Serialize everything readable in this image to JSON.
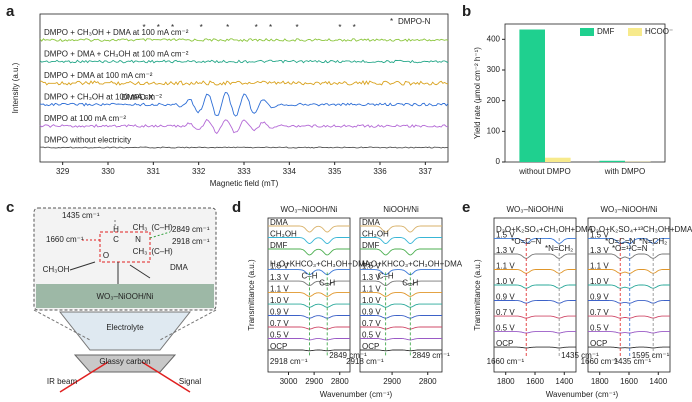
{
  "panel_labels": [
    "a",
    "b",
    "c",
    "d",
    "e"
  ],
  "chart_data": [
    {
      "type": "line",
      "xlabel": "Magnetic field (mT)",
      "ylabel": "Intensity (a.u.)",
      "xlim": [
        328.5,
        337.5
      ],
      "xticks": [
        329,
        330,
        331,
        332,
        333,
        334,
        335,
        336,
        337
      ],
      "marker": "*",
      "legend_label": "DMPO-N",
      "legend_color": "#d48a00",
      "annotation": "DMPO-X",
      "series": [
        {
          "name": "DMPO + CH₃OH + DMA at 100 mA cm⁻²",
          "color": "#8cc63e"
        },
        {
          "name": "DMPO + DMA + CH₃OH at 100 mA cm⁻²",
          "color": "#27a88a"
        },
        {
          "name": "DMPO + DMA at 100 mA cm⁻²",
          "color": "#d9a21e"
        },
        {
          "name": "DMPO + CH₃OH at 100 mA cm⁻²",
          "color": "#2f6fd6"
        },
        {
          "name": "DMPO at 100 mA cm⁻²",
          "color": "#b46ad6"
        },
        {
          "name": "DMPO without electricity",
          "color": "#555555"
        }
      ]
    },
    {
      "type": "bar",
      "ylabel": "Yield rate (μmol cm⁻² h⁻¹)",
      "ylim": [
        0,
        450
      ],
      "yticks": [
        0,
        100,
        200,
        300,
        400
      ],
      "categories": [
        "without DMPO",
        "with DMPO"
      ],
      "series": [
        {
          "name": "DMF",
          "color": "#1fd08f",
          "values": [
            432,
            4
          ]
        },
        {
          "name": "HCOO⁻",
          "color": "#f7ea8c",
          "values": [
            14,
            1
          ]
        }
      ]
    }
  ],
  "diagram_c": {
    "wavenumbers": [
      "1435 cm⁻¹",
      "1660 cm⁻¹",
      "2849 cm⁻¹",
      "2918 cm⁻¹"
    ],
    "atoms": [
      "O",
      "C",
      "N",
      "H",
      "CH₃",
      "CH₃",
      "(C–H)",
      "(C–H)"
    ],
    "reactants": [
      "CH₃OH",
      "DMA"
    ],
    "catalyst": "WO₃–NiOOH/Ni",
    "electrolyte": "Electrolyte",
    "electrode": "Glassy carbon",
    "ir_beam": "IR beam",
    "signal": "Signal"
  },
  "spectra_common": {
    "xlabel": "Wavenumber (cm⁻¹)",
    "ylabel": "Transmittance (a.u.)",
    "potentials": [
      "1.5 V",
      "1.3 V",
      "1.1 V",
      "1.0 V",
      "0.9 V",
      "0.7 V",
      "0.5 V",
      "OCP"
    ],
    "potential_colors": [
      "#3b78d8",
      "#777777",
      "#e0962a",
      "#2aa89a",
      "#3d62c8",
      "#d04b6a",
      "#9a5ac6",
      "#333333"
    ]
  },
  "spectra_panels": [
    {
      "title": "WO₃–NiOOH/Ni",
      "xlim": [
        3080,
        2760
      ],
      "xticks": [
        3000,
        2900,
        2800
      ],
      "legend": "H₂O+KHCO₃+CH₃OH+DMA",
      "references": [
        {
          "name": "DMA",
          "color": "#d9b26a"
        },
        {
          "name": "CH₃OH",
          "color": "#38b6d6"
        },
        {
          "name": "DMF",
          "color": "#4caf50"
        }
      ],
      "peaks": [
        {
          "value": 2918,
          "label": "2918 cm⁻¹",
          "color": "#2e9e3a",
          "note": "C–H"
        },
        {
          "value": 2849,
          "label": "2849 cm⁻¹",
          "color": "#2e9e3a",
          "note": "C–H"
        }
      ]
    },
    {
      "title": "NiOOH/Ni",
      "xlim": [
        2990,
        2760
      ],
      "xticks": [
        2900,
        2800
      ],
      "legend": "H₂O+KHCO₃+CH₃OH+DMA",
      "references": [
        {
          "name": "DMA",
          "color": "#d9b26a"
        },
        {
          "name": "CH₃OH",
          "color": "#38b6d6"
        },
        {
          "name": "DMF",
          "color": "#4caf50"
        }
      ],
      "peaks": [
        {
          "value": 2918,
          "label": "2918 cm⁻¹",
          "color": "#2e9e3a",
          "note": "C–H"
        },
        {
          "value": 2849,
          "label": "2849 cm⁻¹",
          "color": "#2e9e3a",
          "note": "C–H"
        }
      ]
    },
    {
      "title": "WO₃–NiOOH/Ni",
      "xlim": [
        1880,
        1320
      ],
      "xticks": [
        1800,
        1600,
        1400
      ],
      "legend": "D₂O+K₂SO₄+CH₃OH+DMA",
      "references": [],
      "peaks": [
        {
          "value": 1660,
          "label": "1660 cm⁻¹",
          "color": "#e02020",
          "note": "*O=C–N"
        },
        {
          "value": 1435,
          "label": "1435 cm⁻¹",
          "color": "#888888",
          "note": "*N=CH₂"
        }
      ]
    },
    {
      "title": "WO₃–NiOOH/Ni",
      "xlim": [
        1880,
        1320
      ],
      "xticks": [
        1800,
        1600,
        1400
      ],
      "legend": "D₂O+K₂SO₄+¹³CH₃OH+DMA",
      "references": [],
      "peaks": [
        {
          "value": 1660,
          "label": "1660 cm⁻¹",
          "color": "#e02020",
          "note": "*O=C=N"
        },
        {
          "value": 1595,
          "label": "1595 cm⁻¹",
          "color": "#2f6fd6",
          "note": "*O=¹³C=N"
        },
        {
          "value": 1435,
          "label": "1435 cm⁻¹",
          "color": "#888888",
          "note": "*N=CH₂"
        }
      ]
    }
  ]
}
